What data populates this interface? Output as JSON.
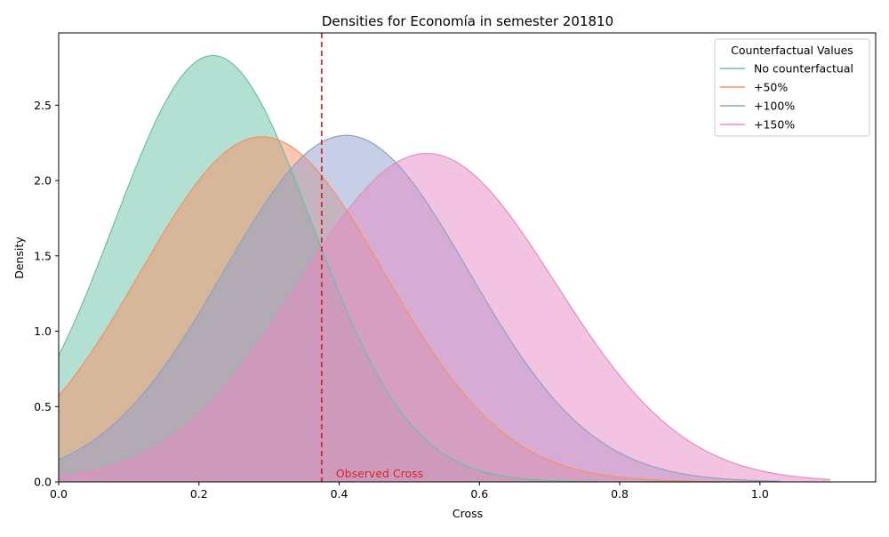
{
  "chart_data": {
    "type": "area",
    "title": "Densities for Economía in semester 201810",
    "xlabel": "Cross",
    "ylabel": "Density",
    "xlim": [
      0.0,
      1.165
    ],
    "ylim": [
      0.0,
      2.98
    ],
    "x_ticks": [
      0.0,
      0.2,
      0.4,
      0.6,
      0.8,
      1.0
    ],
    "x_tick_labels": [
      "0.0",
      "0.2",
      "0.4",
      "0.6",
      "0.8",
      "1.0"
    ],
    "y_ticks": [
      0.0,
      0.5,
      1.0,
      1.5,
      2.0,
      2.5
    ],
    "y_tick_labels": [
      "0.0",
      "0.5",
      "1.0",
      "1.5",
      "2.0",
      "2.5"
    ],
    "grid": false,
    "legend": {
      "title": "Counterfactual Values",
      "position": "top-right"
    },
    "series": [
      {
        "name": "No counterfactual",
        "color": "#66c2a5",
        "peak_x": 0.22,
        "peak_density": 2.83,
        "sd": 0.141,
        "x_range": [
          0.0,
          1.0
        ]
      },
      {
        "name": "+50%",
        "color": "#fc8d62",
        "peak_x": 0.29,
        "peak_density": 2.29,
        "sd": 0.174,
        "x_range": [
          0.0,
          1.0
        ]
      },
      {
        "name": "+100%",
        "color": "#8da0cb",
        "peak_x": 0.41,
        "peak_density": 2.3,
        "sd": 0.175,
        "x_range": [
          0.0,
          1.03
        ]
      },
      {
        "name": "+150%",
        "color": "#e78ac3",
        "peak_x": 0.525,
        "peak_density": 2.18,
        "sd": 0.183,
        "x_range": [
          0.0,
          1.1
        ]
      }
    ],
    "reference_line": {
      "x": 0.375,
      "label": "Observed Cross",
      "color": "#d62728",
      "style": "dashed"
    }
  }
}
